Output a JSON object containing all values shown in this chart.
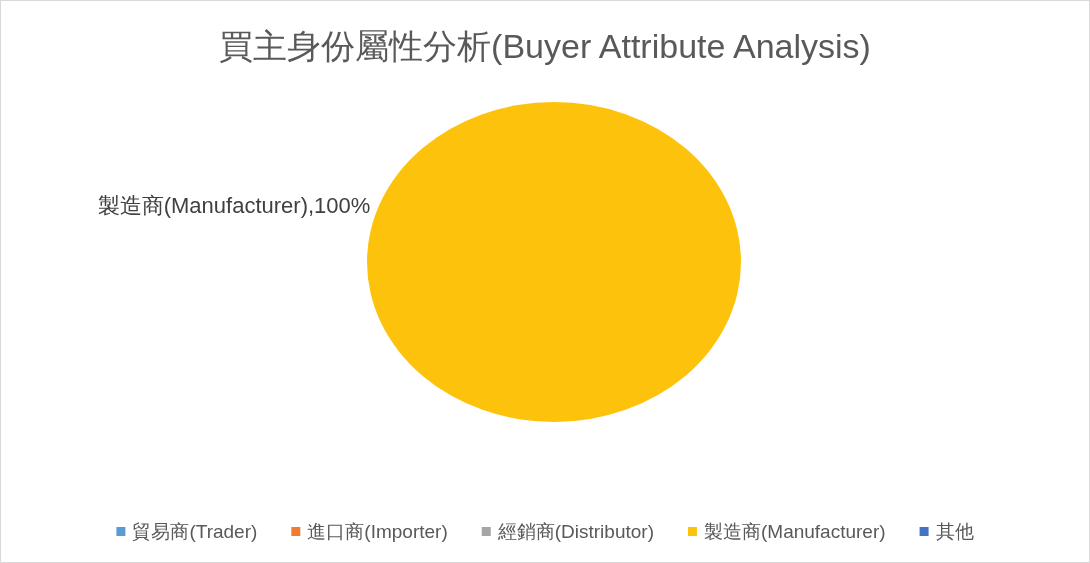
{
  "chart_data": {
    "type": "pie",
    "title": "買主身份屬性分析(Buyer Attribute Analysis)",
    "categories": [
      "貿易商(Trader)",
      "進口商(Importer)",
      "經銷商(Distributor)",
      "製造商(Manufacturer)",
      "其他"
    ],
    "values": [
      0,
      0,
      0,
      100,
      0
    ],
    "colors": [
      "#5b9bd5",
      "#ed7d31",
      "#a5a5a5",
      "#fdc30c",
      "#4472c4"
    ],
    "value_labels": [
      null,
      null,
      null,
      "製造商(Manufacturer),100%",
      null
    ],
    "legend": "bottom"
  }
}
